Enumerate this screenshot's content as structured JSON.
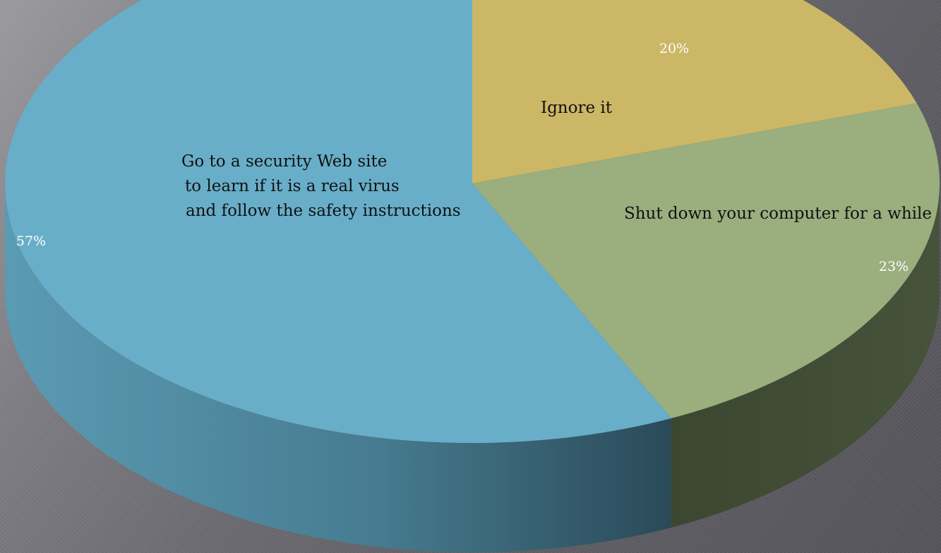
{
  "chart_data": {
    "type": "pie",
    "style": "3d",
    "slices": [
      {
        "label": "Ignore it",
        "value": 20,
        "value_label": "20%",
        "color": "#cbb766",
        "side_color": "#8a7d42"
      },
      {
        "label": "Shut down your computer for a while",
        "value": 23,
        "value_label": "23%",
        "color": "#9aae7e",
        "side_color": "#3f4a33"
      },
      {
        "label_lines": [
          "Go to a security Web site",
          "to learn if it is a real virus",
          "and follow the safety instructions"
        ],
        "value": 57,
        "value_label": "57%",
        "color": "#68aec8",
        "side_color": "#3e6c80"
      }
    ],
    "legend": "none"
  }
}
